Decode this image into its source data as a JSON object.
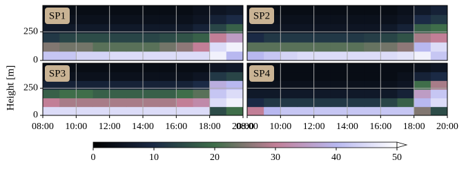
{
  "chart_data": {
    "type": "heatmap",
    "ylabel": "Height [m]",
    "xlim": [
      8,
      20
    ],
    "xticks": [
      {
        "value": 8,
        "label": "08:00"
      },
      {
        "value": 10,
        "label": "10:00"
      },
      {
        "value": 12,
        "label": "12:00"
      },
      {
        "value": 14,
        "label": "14:00"
      },
      {
        "value": 16,
        "label": "16:00"
      },
      {
        "value": 18,
        "label": "18:00"
      },
      {
        "value": 20,
        "label": "20:00"
      }
    ],
    "ylim": [
      0,
      480
    ],
    "yticks": [
      0,
      250
    ],
    "x_edges": [
      8,
      9,
      10,
      11,
      12,
      13,
      14,
      15,
      16,
      17,
      18,
      19,
      20
    ],
    "y_edges": [
      0,
      80,
      160,
      240,
      320,
      400,
      480
    ],
    "grid": true,
    "panels": [
      {
        "title": "SP1",
        "values": [
          [
            42,
            42,
            44,
            44,
            45,
            45,
            45,
            45,
            45,
            45,
            48,
            40
          ],
          [
            25,
            24,
            24,
            22,
            22,
            22,
            22,
            24,
            26,
            30,
            45,
            48
          ],
          [
            12,
            14,
            15,
            15,
            14,
            14,
            14,
            15,
            16,
            18,
            30,
            35
          ],
          [
            6,
            6,
            6,
            6,
            6,
            6,
            6,
            6,
            6,
            8,
            14,
            18
          ],
          [
            4,
            4,
            4,
            4,
            4,
            4,
            4,
            4,
            4,
            5,
            8,
            10
          ],
          [
            3,
            3,
            3,
            3,
            3,
            3,
            3,
            3,
            3,
            4,
            5,
            6
          ]
        ]
      },
      {
        "title": "SP2",
        "values": [
          [
            40,
            42,
            44,
            45,
            45,
            45,
            45,
            45,
            45,
            46,
            48,
            42
          ],
          [
            22,
            22,
            22,
            22,
            22,
            22,
            22,
            23,
            24,
            26,
            40,
            45
          ],
          [
            10,
            12,
            12,
            12,
            12,
            12,
            12,
            13,
            14,
            16,
            28,
            30
          ],
          [
            5,
            5,
            5,
            5,
            5,
            5,
            5,
            5,
            6,
            8,
            18,
            20
          ],
          [
            4,
            4,
            4,
            4,
            4,
            4,
            4,
            4,
            4,
            5,
            10,
            12
          ],
          [
            3,
            3,
            3,
            3,
            3,
            3,
            3,
            3,
            3,
            4,
            6,
            8
          ]
        ]
      },
      {
        "title": "SP3",
        "values": [
          [
            45,
            45,
            45,
            45,
            45,
            45,
            45,
            45,
            45,
            45,
            15,
            20
          ],
          [
            30,
            28,
            28,
            28,
            28,
            28,
            28,
            28,
            30,
            32,
            45,
            48
          ],
          [
            18,
            20,
            20,
            18,
            18,
            18,
            18,
            18,
            20,
            22,
            42,
            45
          ],
          [
            8,
            8,
            8,
            8,
            8,
            8,
            8,
            8,
            8,
            10,
            38,
            40
          ],
          [
            4,
            4,
            4,
            4,
            4,
            4,
            4,
            4,
            4,
            5,
            12,
            14
          ],
          [
            3,
            3,
            3,
            3,
            3,
            3,
            3,
            3,
            3,
            3,
            5,
            6
          ]
        ]
      },
      {
        "title": "SP4",
        "values": [
          [
            30,
            40,
            42,
            42,
            42,
            42,
            42,
            42,
            42,
            42,
            25,
            15
          ],
          [
            10,
            12,
            12,
            12,
            12,
            12,
            12,
            12,
            14,
            18,
            40,
            45
          ],
          [
            6,
            6,
            6,
            6,
            6,
            6,
            6,
            6,
            6,
            8,
            35,
            42
          ],
          [
            4,
            4,
            4,
            4,
            4,
            4,
            4,
            4,
            4,
            5,
            20,
            28
          ],
          [
            3,
            3,
            3,
            3,
            3,
            3,
            3,
            3,
            3,
            4,
            8,
            10
          ],
          [
            3,
            3,
            3,
            3,
            3,
            3,
            3,
            3,
            3,
            3,
            4,
            5
          ]
        ]
      }
    ],
    "colorbar": {
      "lim": [
        0,
        50
      ],
      "ticks": [
        0,
        10,
        20,
        30,
        40,
        50
      ],
      "colors": [
        "#000000",
        "#1b2a45",
        "#3f6e4a",
        "#c27f97",
        "#b8b8f0",
        "#ffffff"
      ],
      "extend": "max"
    }
  }
}
